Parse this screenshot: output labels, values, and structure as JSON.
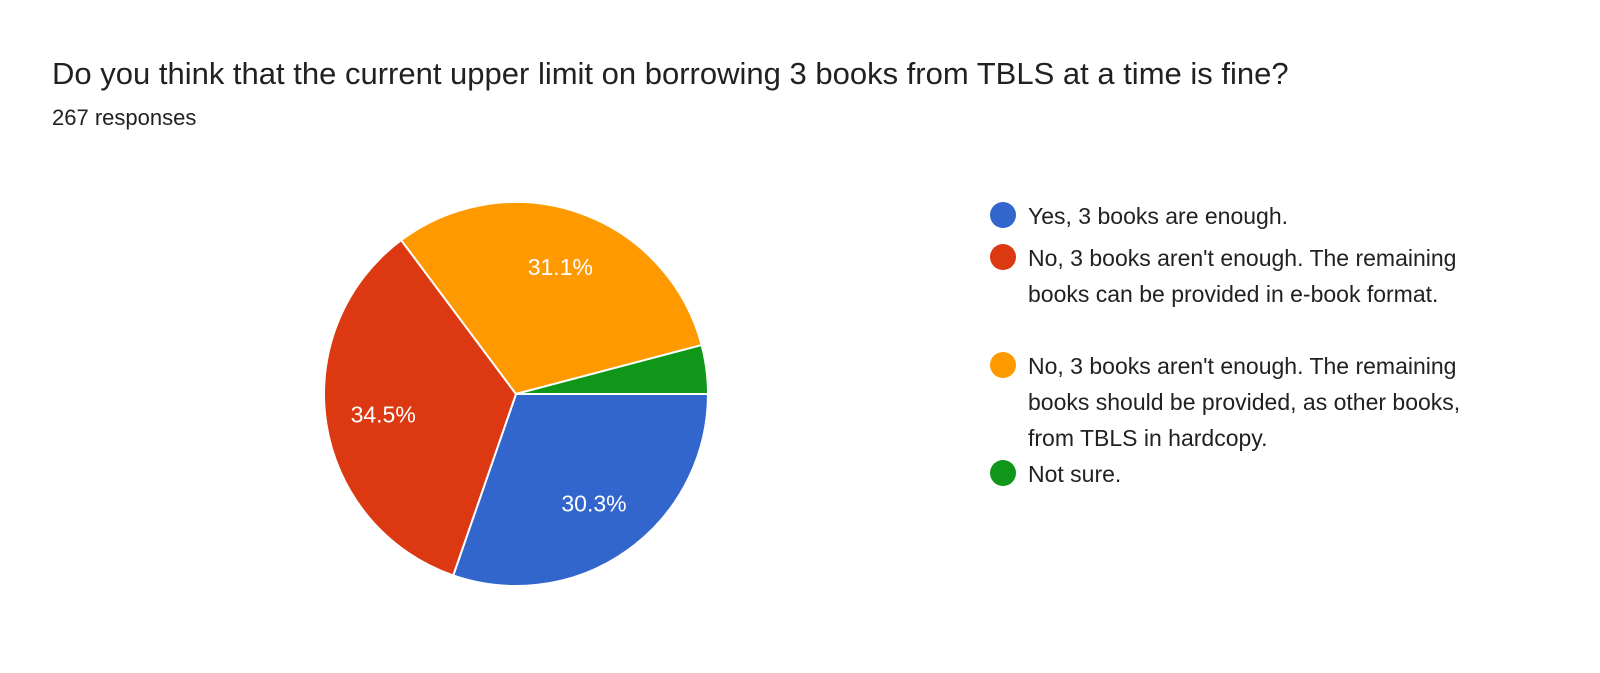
{
  "header": {
    "title": "Do you think that the current upper limit on borrowing 3 books from TBLS at a time is fine?",
    "subtitle": "267 responses"
  },
  "chart_data": {
    "type": "pie",
    "title": "Do you think that the current upper limit on borrowing 3 books from TBLS at a time is fine?",
    "categories": [
      "Yes, 3 books are enough.",
      "No, 3 books aren't enough. The remaining books can be provided in e-book format.",
      "No, 3 books aren't enough. The remaining books should be provided, as other books, from TBLS in hardcopy.",
      "Not sure."
    ],
    "values": [
      30.3,
      34.5,
      31.1,
      4.1
    ],
    "labels": [
      "30.3%",
      "34.5%",
      "31.1%",
      ""
    ],
    "colors": [
      "#3366cc",
      "#dc3912",
      "#ff9900",
      "#109618"
    ],
    "legend_position": "right"
  }
}
